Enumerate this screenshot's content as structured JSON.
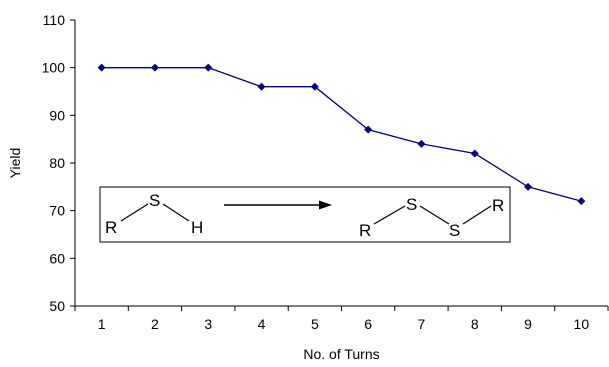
{
  "chart_data": {
    "type": "line",
    "title": "",
    "xlabel": "No. of Turns",
    "ylabel": "Yield",
    "x": [
      1,
      2,
      3,
      4,
      5,
      6,
      7,
      8,
      9,
      10
    ],
    "y": [
      100,
      100,
      100,
      96,
      96,
      87,
      84,
      82,
      75,
      72
    ],
    "xlim": [
      1,
      10
    ],
    "ylim": [
      50,
      110
    ],
    "yticks": [
      50,
      60,
      70,
      80,
      90,
      100,
      110
    ],
    "xticks": [
      1,
      2,
      3,
      4,
      5,
      6,
      7,
      8,
      9,
      10
    ],
    "grid": false,
    "legend": "none",
    "line_color": "#000080",
    "marker": "diamond"
  },
  "inset": {
    "reactant": {
      "r": "R",
      "s": "S",
      "h": "H"
    },
    "product": {
      "r1": "R",
      "s1": "S",
      "s2": "S",
      "r2": "R"
    }
  }
}
